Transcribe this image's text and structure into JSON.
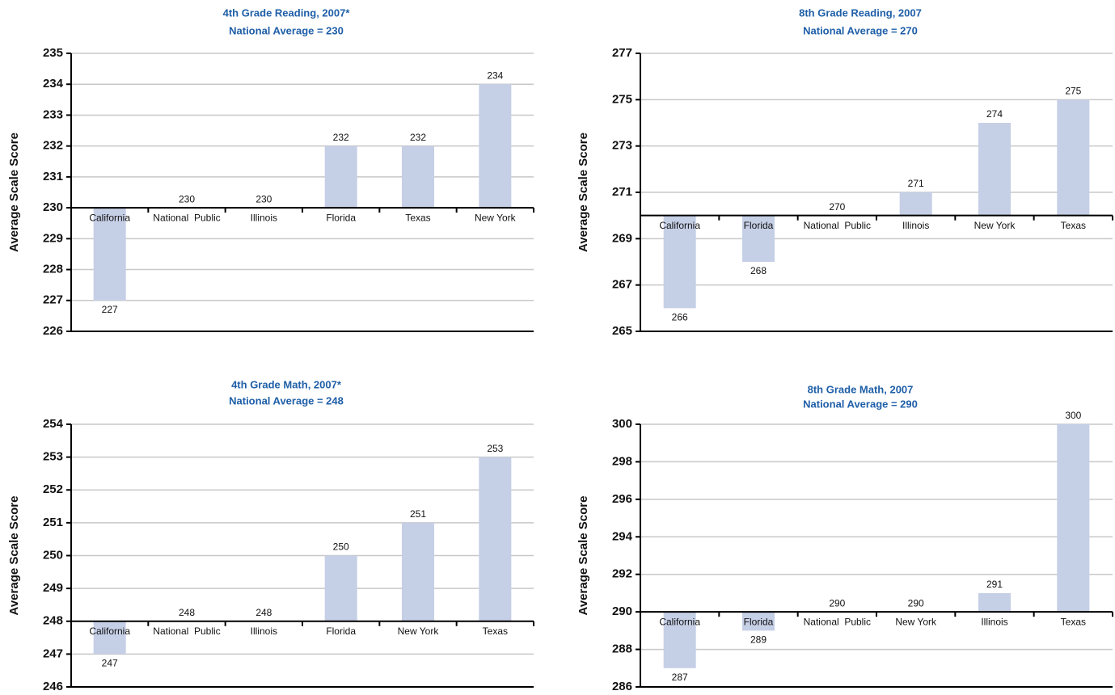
{
  "chart_data": [
    {
      "type": "bar",
      "title": "4th Grade Reading, 2007*",
      "subtitle": "National Average = 230",
      "y_label": "Average Scale Score",
      "categories": [
        "California",
        "National  Public",
        "Illinois",
        "Florida",
        "Texas",
        "New York"
      ],
      "values": [
        227,
        230,
        230,
        232,
        232,
        234
      ],
      "baseline": 230,
      "ylim": [
        226,
        235
      ],
      "yticks": [
        226,
        227,
        228,
        229,
        230,
        231,
        232,
        233,
        234,
        235
      ],
      "color": "#c5cfe6",
      "grid": true
    },
    {
      "type": "bar",
      "title": "8th Grade Reading, 2007",
      "subtitle": "National Average = 270",
      "y_label": "Average Scale Score",
      "categories": [
        "California",
        "Florida",
        "National  Public",
        "Illinois",
        "New York",
        "Texas"
      ],
      "values": [
        266,
        268,
        270,
        271,
        274,
        275
      ],
      "baseline": 270,
      "ylim": [
        265,
        277
      ],
      "yticks": [
        265,
        267,
        269,
        271,
        273,
        275,
        277
      ],
      "color": "#c5cfe6",
      "grid": true
    },
    {
      "type": "bar",
      "title": "4th Grade Math, 2007*",
      "subtitle": "National Average = 248",
      "y_label": "Average Scale Score",
      "categories": [
        "California",
        "National  Public",
        "Illinois",
        "Florida",
        "New York",
        "Texas"
      ],
      "values": [
        247,
        248,
        248,
        250,
        251,
        253
      ],
      "baseline": 248,
      "ylim": [
        246,
        254
      ],
      "yticks": [
        246,
        247,
        248,
        249,
        250,
        251,
        252,
        253,
        254
      ],
      "color": "#c5cfe6",
      "grid": true
    },
    {
      "type": "bar",
      "title": "8th Grade Math, 2007",
      "subtitle": "National Average = 290",
      "y_label": "Average Scale Score",
      "categories": [
        "California",
        "Florida",
        "National  Public",
        "New York",
        "Illinois",
        "Texas"
      ],
      "values": [
        287,
        289,
        290,
        290,
        291,
        300
      ],
      "baseline": 290,
      "ylim": [
        286,
        300
      ],
      "yticks": [
        286,
        288,
        290,
        292,
        294,
        296,
        298,
        300
      ],
      "color": "#c5cfe6",
      "grid": true
    }
  ]
}
